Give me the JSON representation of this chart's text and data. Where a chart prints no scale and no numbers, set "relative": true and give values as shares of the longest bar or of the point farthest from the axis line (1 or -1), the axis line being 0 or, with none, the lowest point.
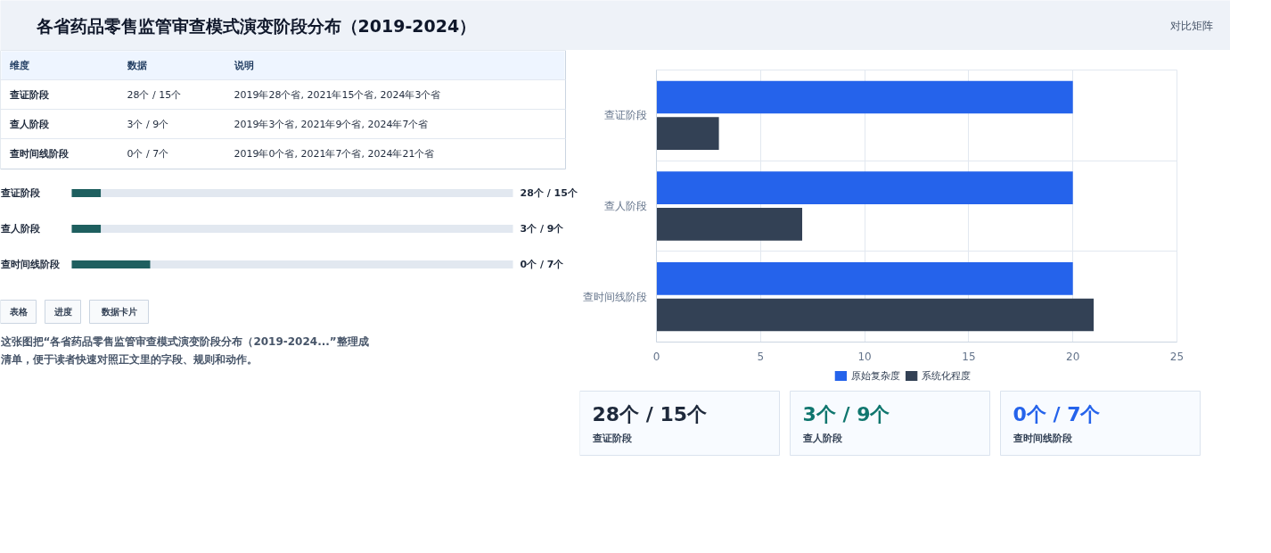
{
  "chart_data": [
    {
      "type": "other",
      "title": "各省药品零售监管审查模式演变阶段分布（2019-2024）",
      "annotations": [
        "对比矩阵"
      ]
    },
    {
      "type": "other",
      "categories": [
        "维度",
        "数据",
        "说明"
      ],
      "y_categories": [
        "查证阶段",
        "查人阶段",
        "查时间线阶段"
      ],
      "cell_labels": [
        [
          "28个 / 15个",
          "2019年28个省, 2021年15个省, 2024年3个省"
        ],
        [
          "3个 / 9个",
          "2019年3个省, 2021年9个省, 2024年7个省"
        ],
        [
          "0个 / 7个",
          "2019年0个省, 2021年7个省, 2024年21个省"
        ]
      ]
    },
    {
      "type": "bar",
      "orientation": "horizontal",
      "relative": true,
      "categories": [
        "查证阶段",
        "查人阶段",
        "查时间线阶段"
      ],
      "values": [
        0.37,
        0.37,
        1
      ],
      "color": "#1e5f5f",
      "annotations": [
        "28个 / 15个",
        "3个 / 9个",
        "0个 / 7个"
      ]
    },
    {
      "type": "other",
      "annotations": [
        "表格",
        "进度",
        "数据卡片",
        "这张图把“各省药品零售监管审查模式演变阶段分布（2019-2024...”整理成清单，便于读者快速对照正文里的字段、规则和动作。"
      ]
    },
    {
      "type": "bar",
      "orientation": "horizontal",
      "categories": [
        "查证阶段",
        "查人阶段",
        "查时间线阶段"
      ],
      "series": [
        {
          "name": "原始复杂度",
          "color": "#2563eb",
          "values": [
            20,
            20,
            20
          ]
        },
        {
          "name": "系统化程度",
          "color": "#334155",
          "values": [
            3,
            7,
            21
          ]
        }
      ],
      "xlim": [
        0,
        25
      ],
      "xticks": [
        0,
        5,
        10,
        15,
        20,
        25
      ],
      "grid": true,
      "legend": "bottom"
    },
    {
      "type": "other",
      "categories": [
        "查证阶段",
        "查人阶段",
        "查时间线阶段"
      ],
      "value_labels": [
        "28个 / 15个",
        "3个 / 9个",
        "0个 / 7个"
      ],
      "colors": [
        "#1e293b",
        "#0f766e",
        "#2563eb"
      ]
    }
  ]
}
